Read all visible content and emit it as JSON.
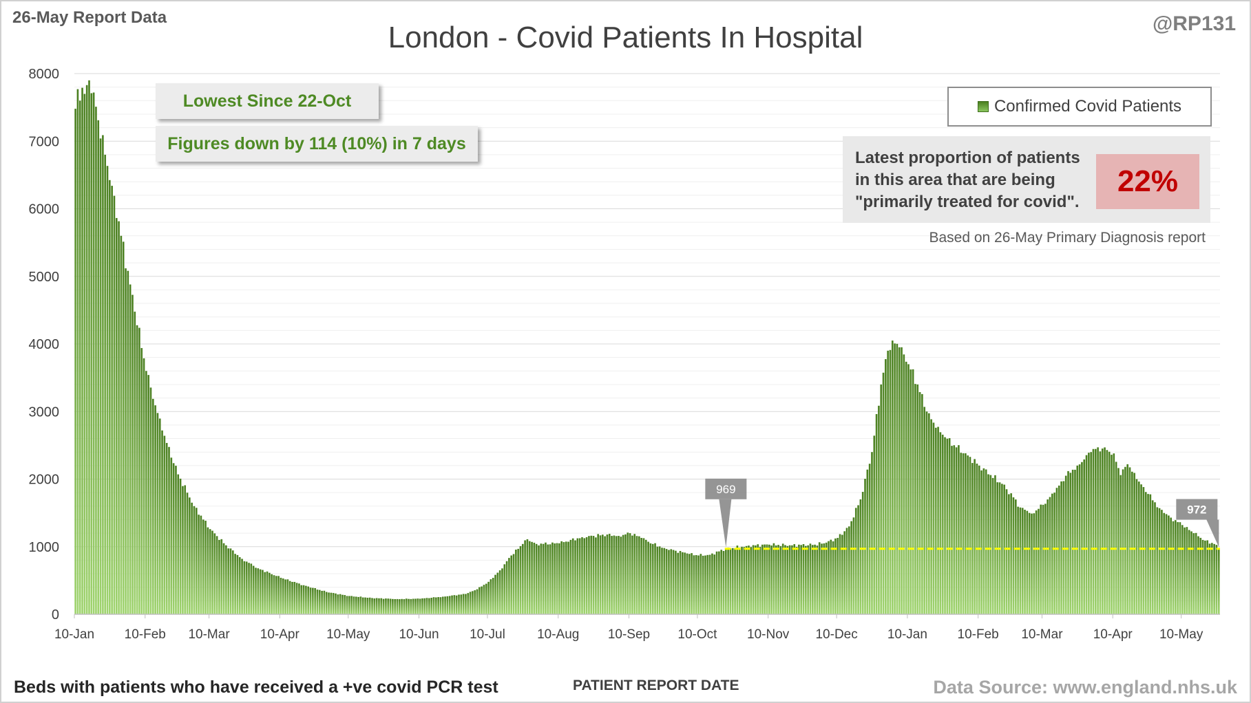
{
  "report_date": "26-May Report Data",
  "handle": "@RP131",
  "callouts": {
    "lowest": "Lowest Since 22-Oct",
    "change": "Figures down by 114 (10%) in 7 days"
  },
  "proportion": {
    "text_line1": "Latest proportion of patients",
    "text_line2": "in this area that are being",
    "text_line3": "\"primarily treated for covid\".",
    "value": "22%",
    "note": "Based on 26-May Primary Diagnosis report"
  },
  "footer": {
    "left": "Beds with patients who have received a +ve covid PCR test",
    "center": "PATIENT REPORT DATE",
    "right": "Data Source: www.england.nhs.uk"
  },
  "colors": {
    "bar_top": "#4a7f20",
    "bar_bottom": "#9fd46e",
    "reference_line": "#ffff00",
    "callout_text": "#4e8a24",
    "highlight_text": "#c00000",
    "highlight_bg": "#e6b4b4",
    "marker_bg": "#8c8c8c"
  },
  "chart_data": {
    "type": "bar",
    "title": "London - Covid Patients In Hospital",
    "xlabel": "PATIENT REPORT DATE",
    "ylabel": "",
    "ylim": [
      0,
      8000
    ],
    "yticks": [
      0,
      1000,
      2000,
      3000,
      4000,
      5000,
      6000,
      7000,
      8000
    ],
    "grid": true,
    "legend_position": "top-right",
    "series_name": "Confirmed Covid Patients",
    "x_tick_labels": [
      "10-Jan",
      "10-Feb",
      "10-Mar",
      "10-Apr",
      "10-May",
      "10-Jun",
      "10-Jul",
      "10-Aug",
      "10-Sep",
      "10-Oct",
      "10-Nov",
      "10-Dec",
      "10-Jan",
      "10-Feb",
      "10-Mar",
      "10-Apr",
      "10-May"
    ],
    "anchors": [
      [
        "10-Jan",
        7480
      ],
      [
        "11-Jan",
        7770
      ],
      [
        "12-Jan",
        7600
      ],
      [
        "13-Jan",
        7790
      ],
      [
        "14-Jan",
        7700
      ],
      [
        "15-Jan",
        7830
      ],
      [
        "16-Jan",
        7900
      ],
      [
        "17-Jan",
        7710
      ],
      [
        "18-Jan",
        7720
      ],
      [
        "19-Jan",
        7510
      ],
      [
        "20-Jan",
        7310
      ],
      [
        "21-Jan",
        7040
      ],
      [
        "23-Jan",
        6800
      ],
      [
        "26-Jan",
        6340
      ],
      [
        "30-Jan",
        5600
      ],
      [
        "3-Feb",
        4880
      ],
      [
        "10-Feb",
        3600
      ],
      [
        "17-Feb",
        2720
      ],
      [
        "24-Feb",
        2070
      ],
      [
        "3-Mar",
        1600
      ],
      [
        "10-Mar",
        1260
      ],
      [
        "17-Mar",
        1020
      ],
      [
        "24-Mar",
        820
      ],
      [
        "31-Mar",
        680
      ],
      [
        "10-Apr",
        540
      ],
      [
        "20-Apr",
        430
      ],
      [
        "30-Apr",
        330
      ],
      [
        "10-May",
        270
      ],
      [
        "20-May",
        240
      ],
      [
        "31-May",
        225
      ],
      [
        "10-Jun",
        230
      ],
      [
        "20-Jun",
        260
      ],
      [
        "30-Jun",
        300
      ],
      [
        "5-Jul",
        370
      ],
      [
        "10-Jul",
        480
      ],
      [
        "15-Jul",
        650
      ],
      [
        "20-Jul",
        870
      ],
      [
        "25-Jul",
        1040
      ],
      [
        "27-Jul",
        1110
      ],
      [
        "31-Jul",
        1040
      ],
      [
        "10-Aug",
        1050
      ],
      [
        "20-Aug",
        1140
      ],
      [
        "31-Aug",
        1180
      ],
      [
        "5-Sep",
        1160
      ],
      [
        "10-Sep",
        1200
      ],
      [
        "15-Sep",
        1130
      ],
      [
        "20-Sep",
        1040
      ],
      [
        "25-Sep",
        980
      ],
      [
        "30-Sep",
        940
      ],
      [
        "5-Oct",
        900
      ],
      [
        "10-Oct",
        870
      ],
      [
        "15-Oct",
        880
      ],
      [
        "19-Oct",
        930
      ],
      [
        "22-Oct",
        969
      ],
      [
        "31-Oct",
        1010
      ],
      [
        "10-Nov",
        1030
      ],
      [
        "20-Nov",
        1020
      ],
      [
        "30-Nov",
        1030
      ],
      [
        "5-Dec",
        1060
      ],
      [
        "10-Dec",
        1130
      ],
      [
        "15-Dec",
        1300
      ],
      [
        "20-Dec",
        1700
      ],
      [
        "25-Dec",
        2400
      ],
      [
        "29-Dec",
        3400
      ],
      [
        "1-Jan",
        3900
      ],
      [
        "3-Jan",
        4050
      ],
      [
        "6-Jan",
        3950
      ],
      [
        "10-Jan",
        3700
      ],
      [
        "14-Jan",
        3400
      ],
      [
        "18-Jan",
        3000
      ],
      [
        "22-Jan",
        2760
      ],
      [
        "26-Jan",
        2620
      ],
      [
        "31-Jan",
        2470
      ],
      [
        "5-Feb",
        2350
      ],
      [
        "10-Feb",
        2200
      ],
      [
        "15-Feb",
        2060
      ],
      [
        "20-Feb",
        1930
      ],
      [
        "25-Feb",
        1730
      ],
      [
        "28-Feb",
        1580
      ],
      [
        "3-Mar",
        1530
      ],
      [
        "5-Mar",
        1490
      ],
      [
        "8-Mar",
        1560
      ],
      [
        "10-Mar",
        1620
      ],
      [
        "15-Mar",
        1800
      ],
      [
        "20-Mar",
        2050
      ],
      [
        "25-Mar",
        2200
      ],
      [
        "31-Mar",
        2400
      ],
      [
        "3-Apr",
        2470
      ],
      [
        "7-Apr",
        2430
      ],
      [
        "10-Apr",
        2380
      ],
      [
        "13-Apr",
        2060
      ],
      [
        "16-Apr",
        2220
      ],
      [
        "20-Apr",
        2000
      ],
      [
        "25-Apr",
        1780
      ],
      [
        "30-Apr",
        1570
      ],
      [
        "5-May",
        1430
      ],
      [
        "10-May",
        1320
      ],
      [
        "15-May",
        1200
      ],
      [
        "20-May",
        1090
      ],
      [
        "24-May",
        1040
      ],
      [
        "26-May",
        972
      ]
    ],
    "reference_line": {
      "value": 969,
      "from": "22-Oct",
      "to": "26-May",
      "style": "dashed"
    },
    "markers": [
      {
        "label": "969",
        "date": "22-Oct",
        "value": 969
      },
      {
        "label": "972",
        "date": "26-May",
        "value": 972
      }
    ]
  }
}
